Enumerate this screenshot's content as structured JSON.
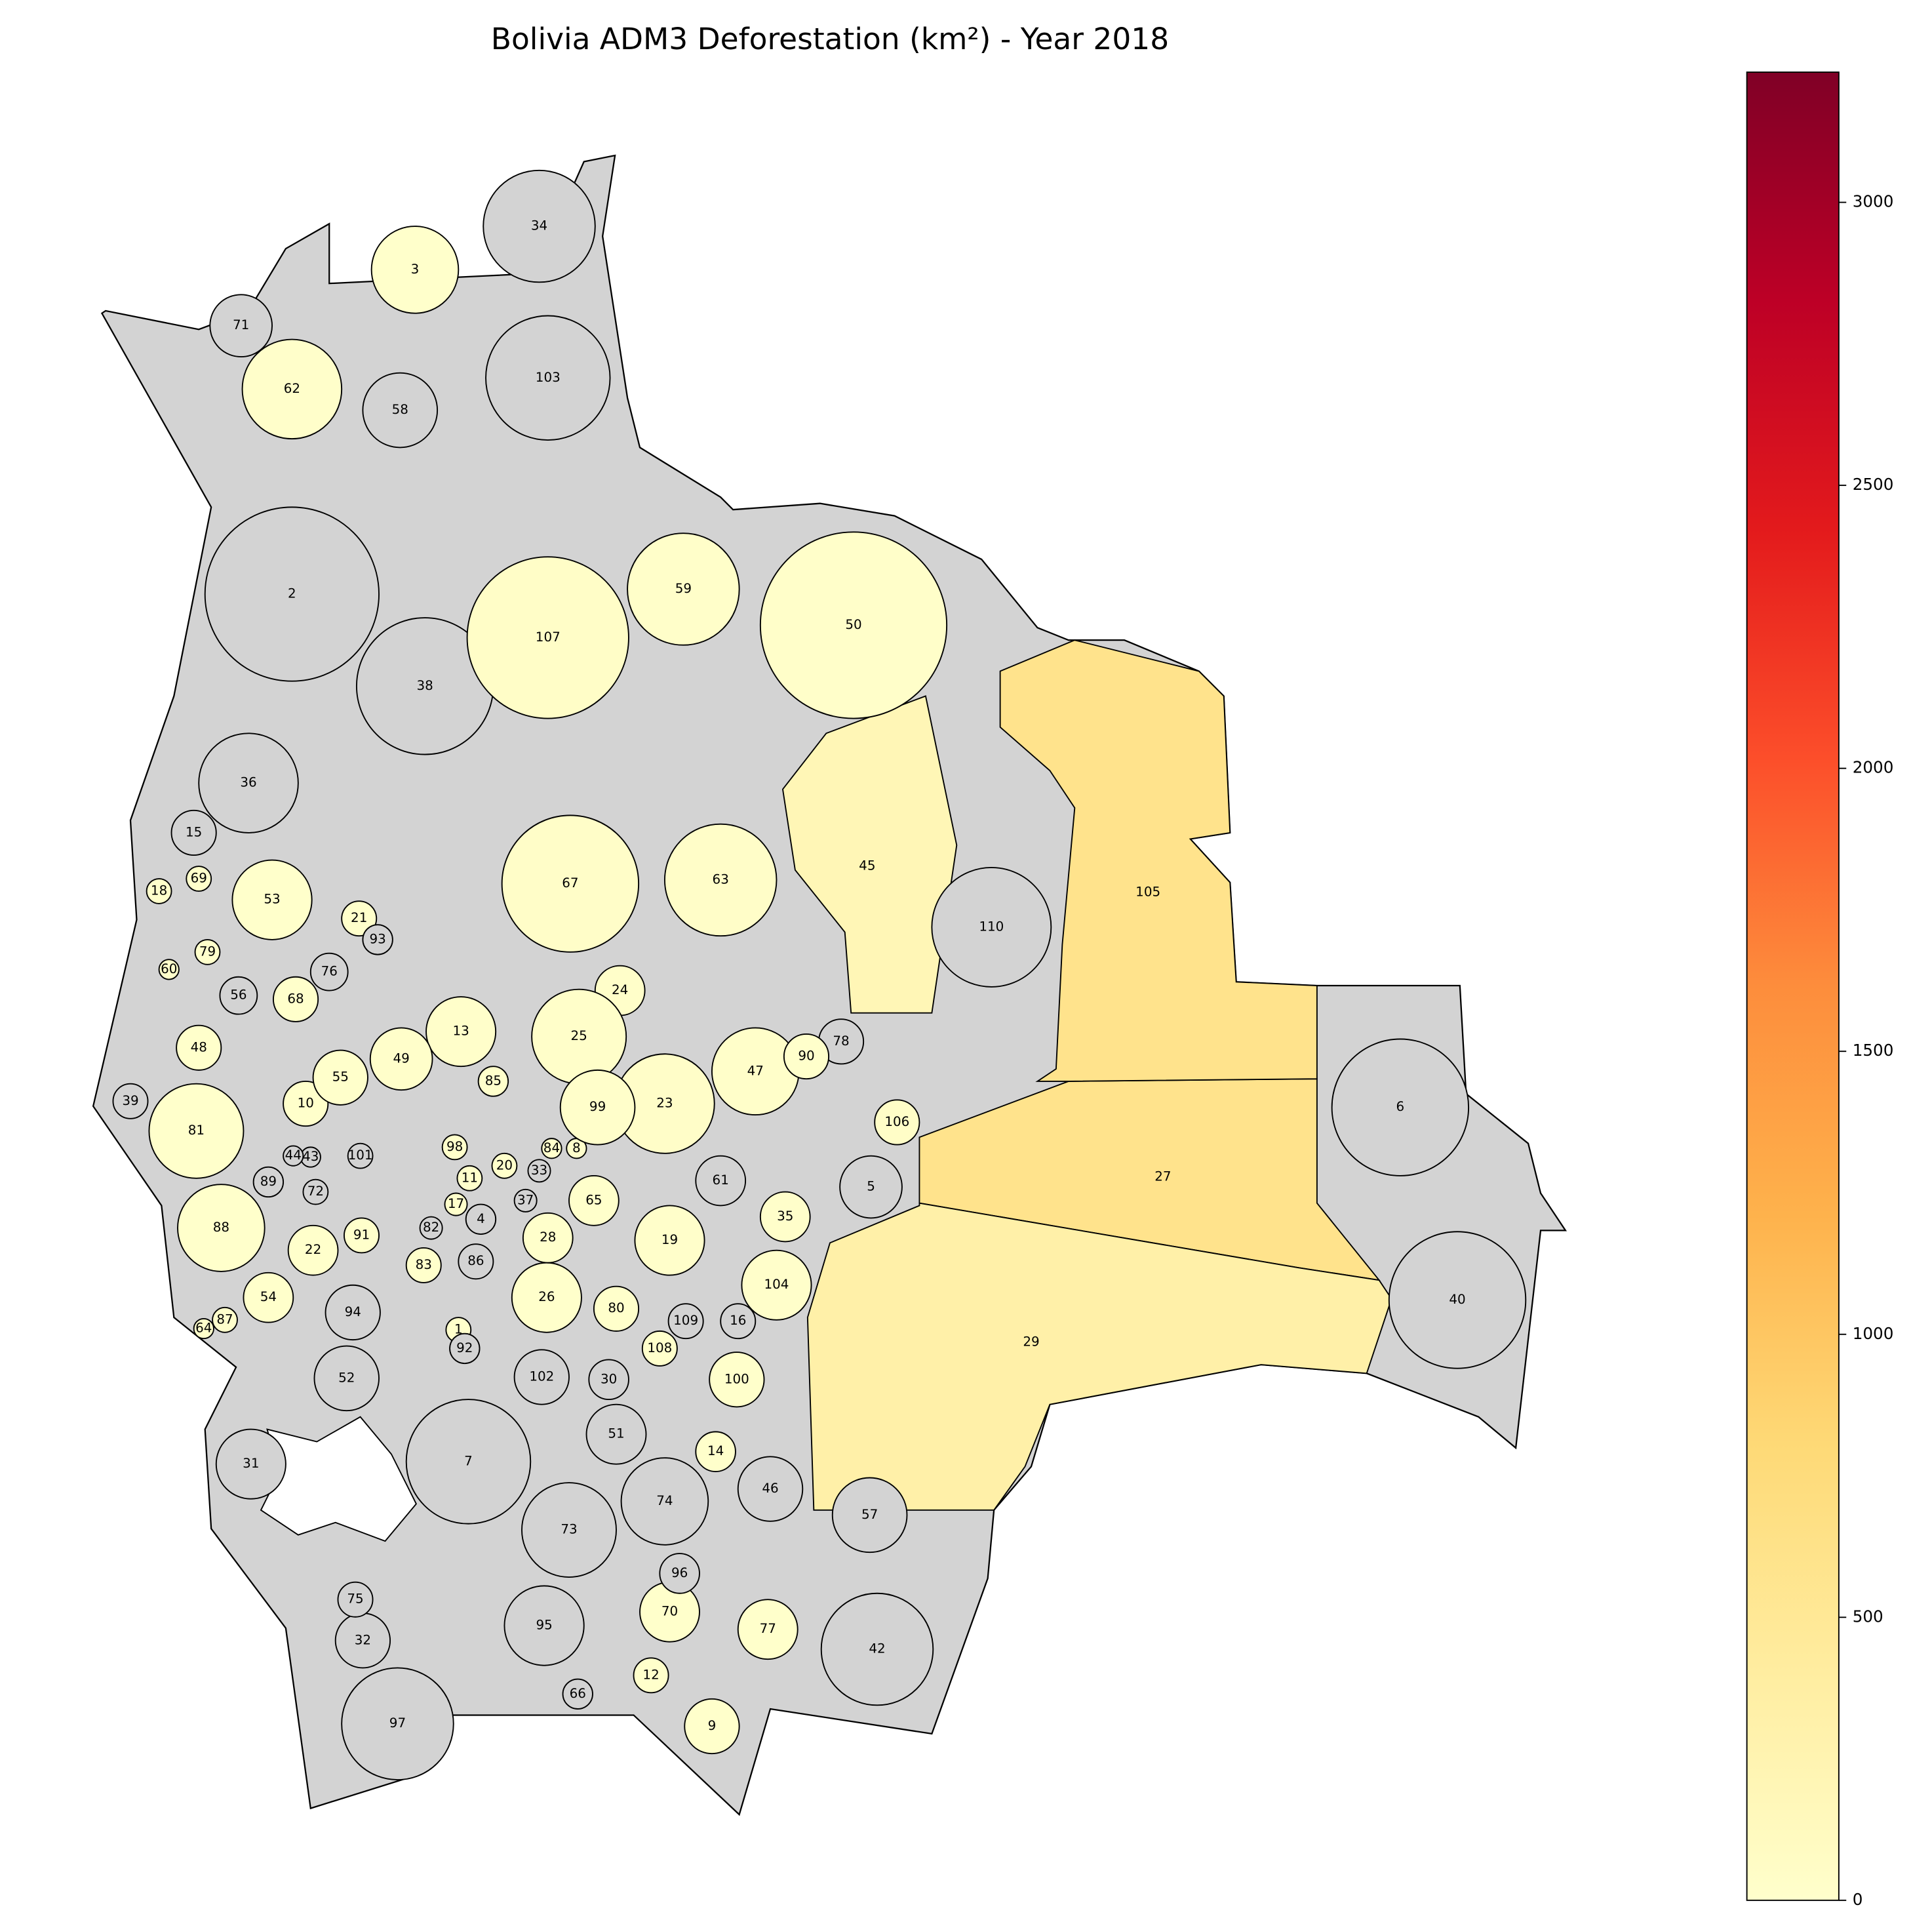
{
  "chart_data": {
    "type": "choropleth",
    "title": "Bolivia ADM3 Deforestation (km²) - Year 2018",
    "colormap": "YlOrRd",
    "missing_color": "#d3d3d3",
    "clim": [
      0,
      3230
    ],
    "cticks": [
      0,
      500,
      1000,
      1500,
      2000,
      2500,
      3000
    ],
    "regions": [
      {
        "label": "1",
        "value": 5
      },
      {
        "label": "2",
        "value": null
      },
      {
        "label": "3",
        "value": 10
      },
      {
        "label": "4",
        "value": null
      },
      {
        "label": "5",
        "value": null
      },
      {
        "label": "6",
        "value": null
      },
      {
        "label": "7",
        "value": null
      },
      {
        "label": "8",
        "value": 5
      },
      {
        "label": "9",
        "value": 10
      },
      {
        "label": "10",
        "value": 5
      },
      {
        "label": "11",
        "value": 5
      },
      {
        "label": "12",
        "value": 5
      },
      {
        "label": "13",
        "value": 20
      },
      {
        "label": "14",
        "value": 5
      },
      {
        "label": "15",
        "value": null
      },
      {
        "label": "16",
        "value": null
      },
      {
        "label": "17",
        "value": 5
      },
      {
        "label": "18",
        "value": 5
      },
      {
        "label": "19",
        "value": 20
      },
      {
        "label": "20",
        "value": 5
      },
      {
        "label": "21",
        "value": 5
      },
      {
        "label": "22",
        "value": 5
      },
      {
        "label": "23",
        "value": 40
      },
      {
        "label": "24",
        "value": 30
      },
      {
        "label": "25",
        "value": 30
      },
      {
        "label": "26",
        "value": 5
      },
      {
        "label": "27",
        "value": 600
      },
      {
        "label": "28",
        "value": 5
      },
      {
        "label": "29",
        "value": 330
      },
      {
        "label": "30",
        "value": null
      },
      {
        "label": "31",
        "value": null
      },
      {
        "label": "32",
        "value": null
      },
      {
        "label": "33",
        "value": null
      },
      {
        "label": "34",
        "value": null
      },
      {
        "label": "35",
        "value": 20
      },
      {
        "label": "36",
        "value": null
      },
      {
        "label": "37",
        "value": null
      },
      {
        "label": "38",
        "value": null
      },
      {
        "label": "39",
        "value": null
      },
      {
        "label": "40",
        "value": null
      },
      {
        "label": "42",
        "value": null
      },
      {
        "label": "43",
        "value": null
      },
      {
        "label": "44",
        "value": null
      },
      {
        "label": "45",
        "value": 200
      },
      {
        "label": "46",
        "value": null
      },
      {
        "label": "47",
        "value": 30
      },
      {
        "label": "48",
        "value": 5
      },
      {
        "label": "49",
        "value": 20
      },
      {
        "label": "50",
        "value": 30
      },
      {
        "label": "51",
        "value": null
      },
      {
        "label": "52",
        "value": null
      },
      {
        "label": "53",
        "value": 10
      },
      {
        "label": "54",
        "value": 5
      },
      {
        "label": "55",
        "value": 10
      },
      {
        "label": "56",
        "value": null
      },
      {
        "label": "57",
        "value": null
      },
      {
        "label": "58",
        "value": null
      },
      {
        "label": "59",
        "value": 30
      },
      {
        "label": "60",
        "value": 5
      },
      {
        "label": "61",
        "value": null
      },
      {
        "label": "62",
        "value": 20
      },
      {
        "label": "63",
        "value": 40
      },
      {
        "label": "64",
        "value": 5
      },
      {
        "label": "65",
        "value": 10
      },
      {
        "label": "66",
        "value": null
      },
      {
        "label": "67",
        "value": 40
      },
      {
        "label": "68",
        "value": 5
      },
      {
        "label": "69",
        "value": 5
      },
      {
        "label": "70",
        "value": 5
      },
      {
        "label": "71",
        "value": null
      },
      {
        "label": "72",
        "value": null
      },
      {
        "label": "73",
        "value": null
      },
      {
        "label": "74",
        "value": null
      },
      {
        "label": "75",
        "value": null
      },
      {
        "label": "76",
        "value": null
      },
      {
        "label": "77",
        "value": 10
      },
      {
        "label": "78",
        "value": null
      },
      {
        "label": "79",
        "value": 5
      },
      {
        "label": "80",
        "value": 5
      },
      {
        "label": "81",
        "value": 10
      },
      {
        "label": "82",
        "value": null
      },
      {
        "label": "83",
        "value": 5
      },
      {
        "label": "84",
        "value": 5
      },
      {
        "label": "85",
        "value": 5
      },
      {
        "label": "86",
        "value": null
      },
      {
        "label": "87",
        "value": 5
      },
      {
        "label": "88",
        "value": 10
      },
      {
        "label": "89",
        "value": null
      },
      {
        "label": "90",
        "value": 10
      },
      {
        "label": "91",
        "value": 5
      },
      {
        "label": "92",
        "value": null
      },
      {
        "label": "93",
        "value": null
      },
      {
        "label": "94",
        "value": null
      },
      {
        "label": "95",
        "value": null
      },
      {
        "label": "96",
        "value": null
      },
      {
        "label": "97",
        "value": null
      },
      {
        "label": "98",
        "value": 5
      },
      {
        "label": "99",
        "value": 20
      },
      {
        "label": "100",
        "value": 10
      },
      {
        "label": "101",
        "value": null
      },
      {
        "label": "102",
        "value": null
      },
      {
        "label": "103",
        "value": null
      },
      {
        "label": "104",
        "value": 20
      },
      {
        "label": "105",
        "value": 600
      },
      {
        "label": "106",
        "value": 50
      },
      {
        "label": "107",
        "value": 50
      },
      {
        "label": "108",
        "value": 5
      },
      {
        "label": "109",
        "value": null
      },
      {
        "label": "110",
        "value": null
      }
    ]
  }
}
